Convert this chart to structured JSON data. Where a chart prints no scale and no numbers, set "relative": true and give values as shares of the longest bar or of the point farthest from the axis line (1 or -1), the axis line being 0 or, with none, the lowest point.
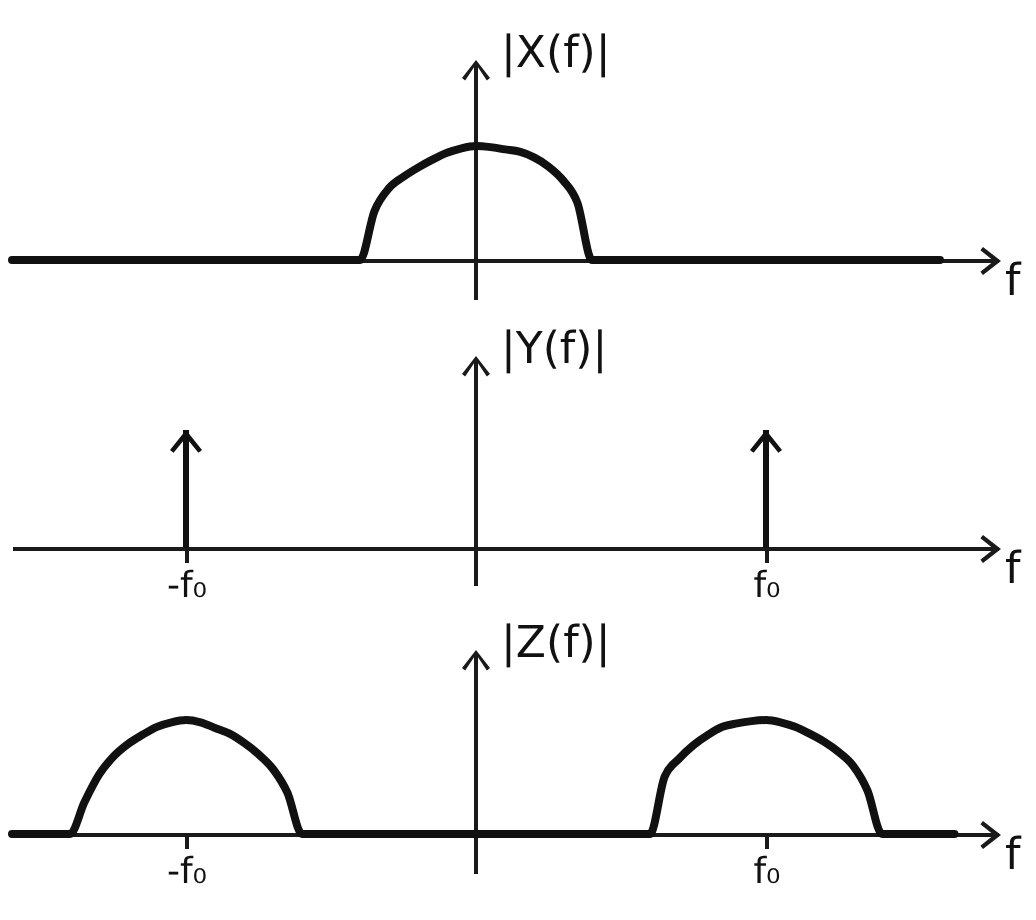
{
  "chart_data": [
    {
      "type": "line",
      "ylabel": "|X(f)|",
      "xlabel": "f",
      "relative": true,
      "tick_labels": false,
      "color": "#111111",
      "categories": [
        null,
        null,
        null,
        null,
        null,
        null,
        null,
        null,
        null,
        null,
        null,
        null,
        null,
        null,
        null,
        null,
        null,
        null,
        null,
        null,
        null,
        null,
        null,
        null,
        null,
        null,
        null,
        null,
        null,
        null,
        null,
        null,
        null,
        null,
        null,
        null,
        null,
        null,
        null,
        null,
        null,
        null,
        null,
        null,
        null,
        null,
        null,
        null,
        null,
        null,
        null,
        null,
        null,
        null,
        null,
        null,
        null,
        null,
        null,
        null,
        null,
        null,
        null,
        null,
        null,
        null,
        null,
        null,
        null
      ],
      "values": [
        0,
        0,
        0,
        0,
        0,
        0,
        0,
        0,
        0,
        0,
        0,
        0,
        0,
        0,
        0,
        0,
        0,
        0,
        0,
        0,
        0,
        0,
        0,
        0,
        0,
        0.43,
        0.63,
        0.73,
        0.81,
        0.88,
        0.94,
        0.98,
        1,
        0.99,
        0.97,
        0.95,
        0.9,
        0.82,
        0.7,
        0.5,
        0,
        0,
        0,
        0,
        0,
        0,
        0,
        0,
        0,
        0,
        0,
        0,
        0,
        0,
        0,
        0,
        0,
        0,
        0,
        0,
        0,
        0,
        0,
        0,
        0,
        null,
        null,
        null,
        null
      ]
    },
    {
      "type": "bar",
      "ylabel": "|Y(f)|",
      "xlabel": "f",
      "relative": true,
      "tick_labels": "x",
      "color": "#111111",
      "categories": [
        null,
        null,
        null,
        null,
        null,
        null,
        null,
        null,
        null,
        null,
        null,
        null,
        "-f₀",
        null,
        null,
        null,
        null,
        null,
        null,
        null,
        null,
        null,
        null,
        null,
        null,
        null,
        null,
        null,
        null,
        null,
        null,
        null,
        null,
        null,
        null,
        null,
        null,
        null,
        null,
        null,
        null,
        null,
        null,
        null,
        null,
        null,
        null,
        null,
        null,
        null,
        null,
        null,
        "f₀",
        null,
        null,
        null,
        null,
        null,
        null,
        null,
        null,
        null,
        null,
        null,
        null,
        null,
        null,
        null,
        null
      ],
      "values": [
        null,
        null,
        null,
        null,
        null,
        null,
        null,
        null,
        null,
        null,
        null,
        null,
        1,
        null,
        null,
        null,
        null,
        null,
        null,
        null,
        null,
        null,
        null,
        null,
        null,
        null,
        null,
        null,
        null,
        null,
        null,
        null,
        null,
        null,
        null,
        null,
        null,
        null,
        null,
        null,
        null,
        null,
        null,
        null,
        null,
        null,
        null,
        null,
        null,
        null,
        null,
        null,
        1,
        null,
        null,
        null,
        null,
        null,
        null,
        null,
        null,
        null,
        null,
        null,
        null,
        null,
        null,
        null,
        null
      ]
    },
    {
      "type": "line",
      "ylabel": "|Z(f)|",
      "xlabel": "f",
      "relative": true,
      "tick_labels": "x",
      "color": "#111111",
      "categories": [
        null,
        null,
        null,
        null,
        null,
        null,
        null,
        null,
        null,
        null,
        null,
        null,
        "-f₀",
        null,
        null,
        null,
        null,
        null,
        null,
        null,
        null,
        null,
        null,
        null,
        null,
        null,
        null,
        null,
        null,
        null,
        null,
        null,
        null,
        null,
        null,
        null,
        null,
        null,
        null,
        null,
        null,
        null,
        null,
        null,
        null,
        null,
        null,
        null,
        null,
        null,
        null,
        null,
        "f₀",
        null,
        null,
        null,
        null,
        null,
        null,
        null,
        null,
        null,
        null,
        null,
        null,
        null,
        null,
        null,
        null
      ],
      "values": [
        0,
        0,
        0,
        0,
        0,
        0.28,
        0.52,
        0.68,
        0.79,
        0.87,
        0.94,
        0.98,
        1,
        0.98,
        0.93,
        0.88,
        0.8,
        0.7,
        0.57,
        0.36,
        0,
        0,
        0,
        0,
        0,
        0,
        0,
        0,
        0,
        0,
        0,
        0,
        0,
        0,
        0,
        0,
        0,
        0,
        0,
        0,
        0,
        0,
        0,
        0,
        0,
        0.5,
        0.66,
        0.78,
        0.87,
        0.94,
        0.97,
        0.99,
        1,
        0.98,
        0.94,
        0.88,
        0.81,
        0.72,
        0.6,
        0.38,
        0,
        0,
        0,
        0,
        0,
        0,
        null,
        null,
        null
      ]
    }
  ]
}
